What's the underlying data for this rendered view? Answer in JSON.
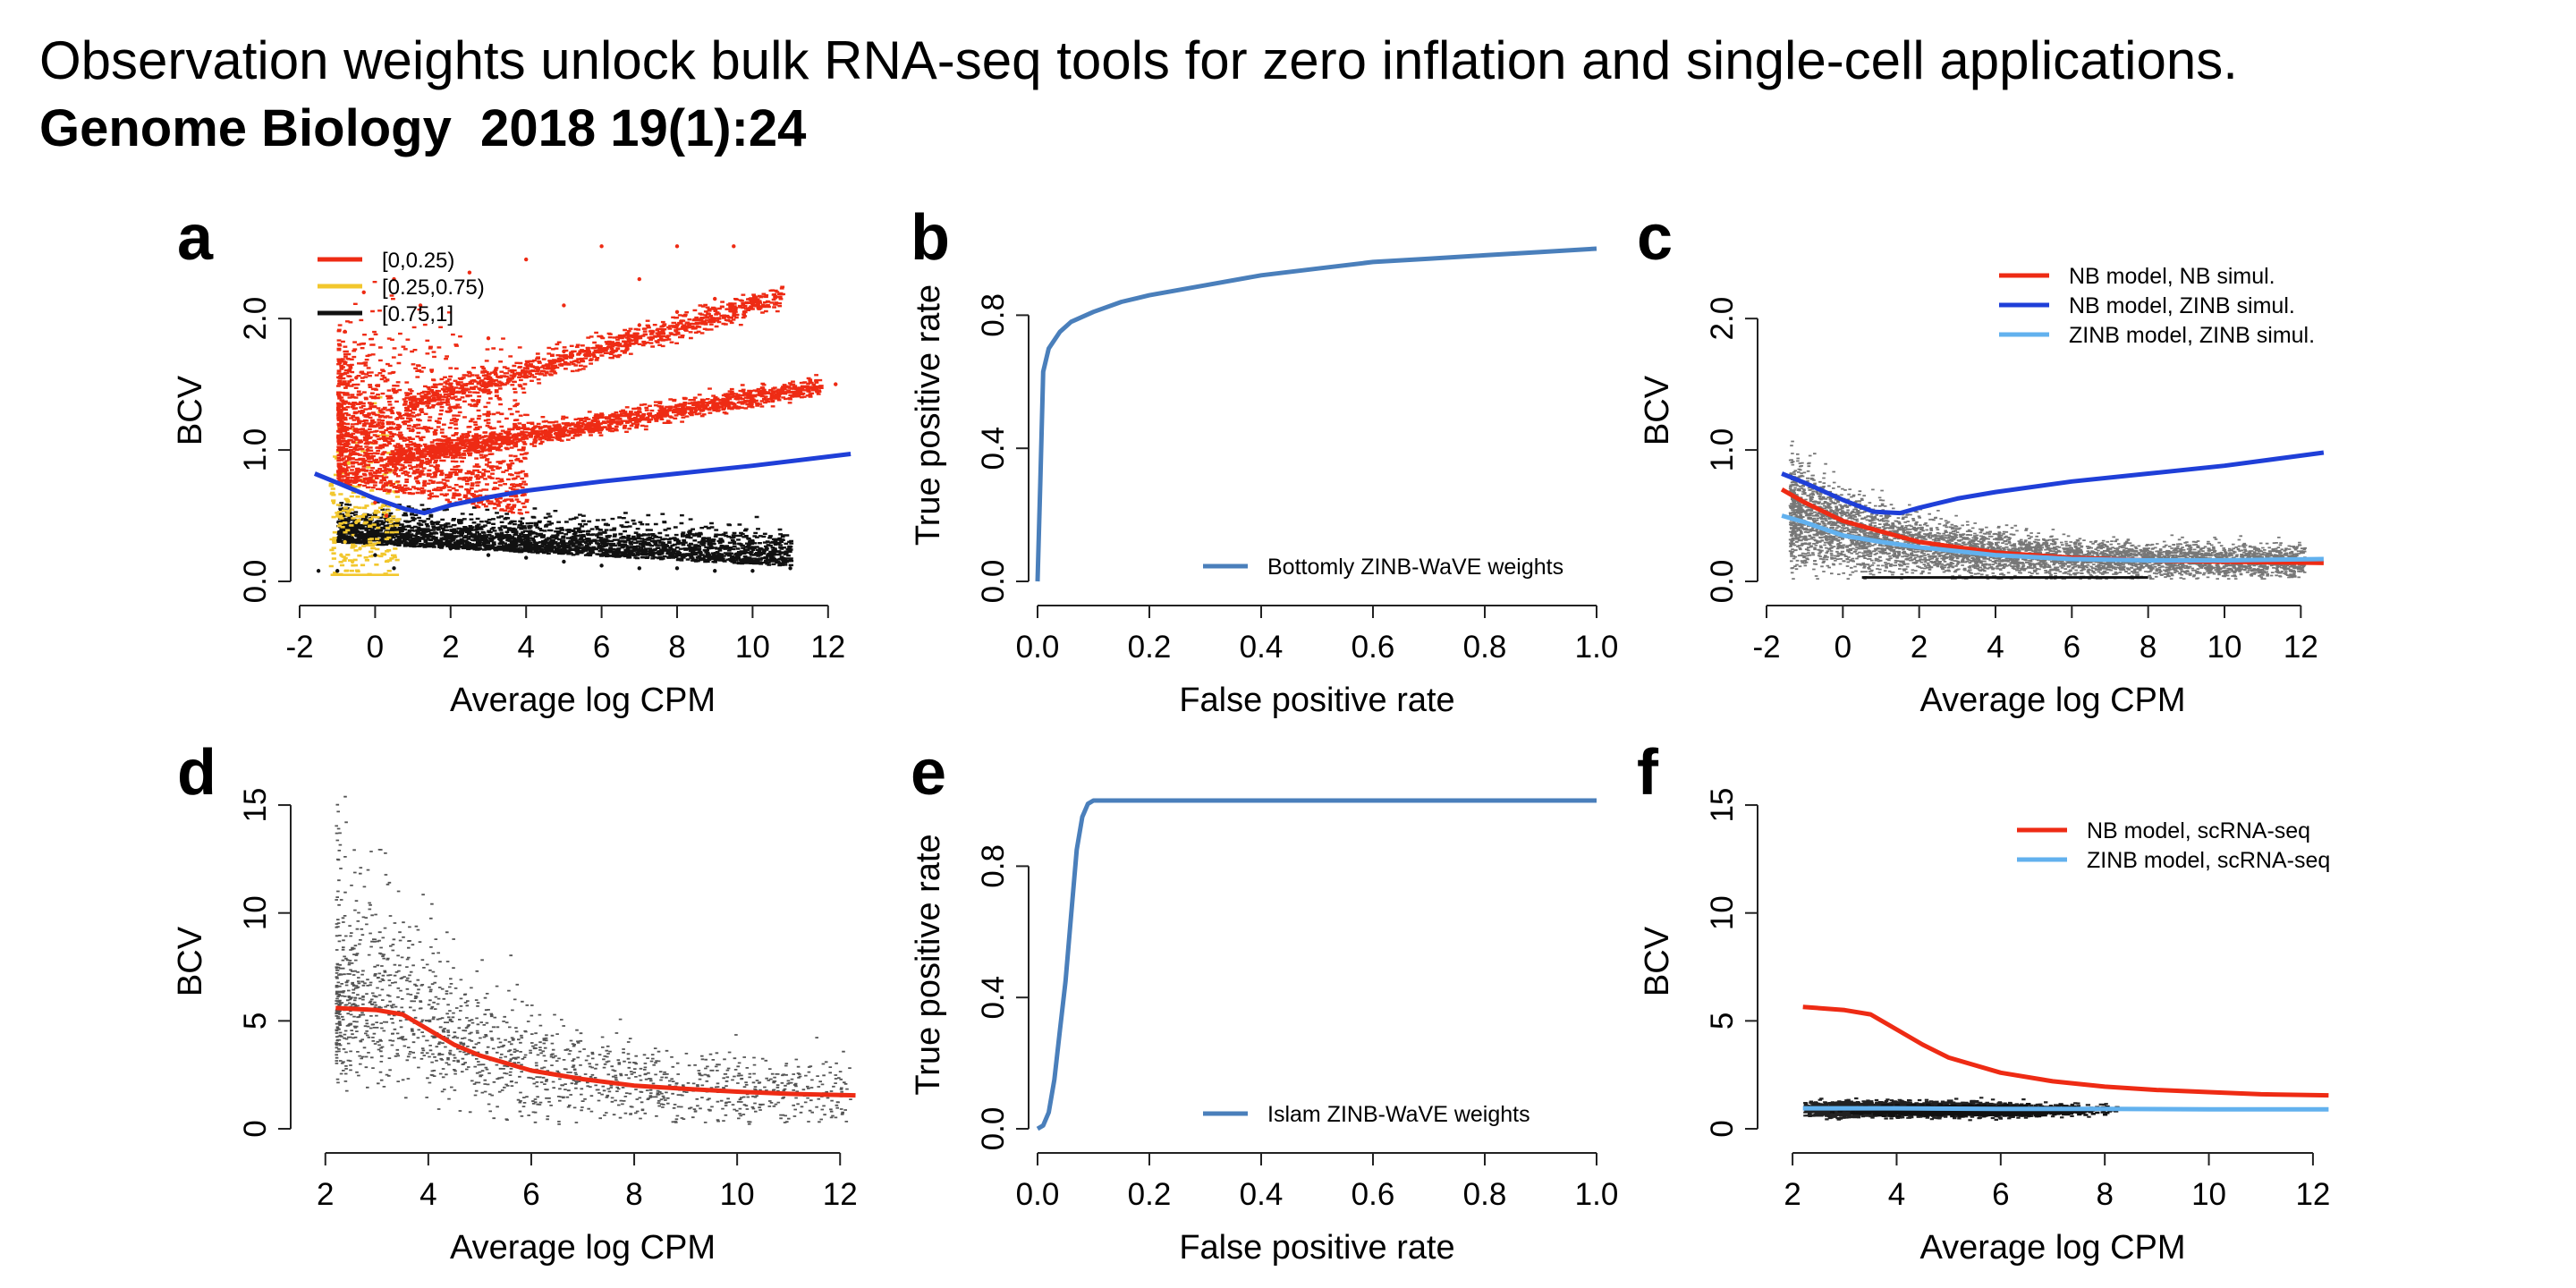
{
  "heading": {
    "title": "Observation weights unlock bulk RNA-seq tools for zero inflation and single-cell applications.",
    "journal": "Genome Biology  2018 19(1):24"
  },
  "colors": {
    "red": "#ee2b14",
    "yellow": "#f2c72d",
    "black": "#111111",
    "blue": "#1f3fd8",
    "steel_blue": "#4a7fbb",
    "light_blue": "#62b1ee",
    "axis": "#222222"
  },
  "chart_data": [
    {
      "panel": "a",
      "type": "scatter",
      "xlabel": "Average log CPM",
      "ylabel": "BCV",
      "xlim": [
        -2,
        13
      ],
      "ylim": [
        0,
        2.6
      ],
      "xticks": [
        -2,
        0,
        2,
        4,
        6,
        8,
        10,
        12
      ],
      "xtick_labels": [
        "-2",
        "0",
        "2",
        "4",
        "6",
        "8",
        "10",
        "12"
      ],
      "yticks": [
        0,
        1,
        2
      ],
      "ytick_labels": [
        "0.0",
        "1.0",
        "2.0"
      ],
      "legend": {
        "placement": "top-left",
        "entries": [
          {
            "label": "[0,0.25)",
            "color": "#ee2b14"
          },
          {
            "label": "[0.25,0.75)",
            "color": "#f2c72d"
          },
          {
            "label": "[0.75,1]",
            "color": "#111111"
          }
        ]
      },
      "series": [
        {
          "name": "[0,0.25)",
          "color": "#ee2b14",
          "kind": "points",
          "points": [
            [
              -0.5,
              1.55
            ],
            [
              0.2,
              1.2
            ],
            [
              1.0,
              1.15
            ],
            [
              2.0,
              1.3
            ],
            [
              3.0,
              1.5
            ],
            [
              4.0,
              1.65
            ],
            [
              5.0,
              1.75
            ],
            [
              6.0,
              1.86
            ],
            [
              7.0,
              1.95
            ],
            [
              8.0,
              2.05
            ],
            [
              9.0,
              2.15
            ],
            [
              -0.8,
              1.9
            ],
            [
              -0.3,
              2.2
            ],
            [
              0.5,
              2.3
            ],
            [
              1.2,
              2.1
            ],
            [
              2.5,
              2.35
            ],
            [
              4.0,
              2.45
            ],
            [
              6.0,
              2.55
            ],
            [
              8.0,
              2.55
            ],
            [
              9.5,
              2.55
            ],
            [
              0.5,
              0.95
            ],
            [
              1.5,
              0.95
            ],
            [
              2.5,
              1.0
            ],
            [
              3.5,
              1.05
            ],
            [
              4.5,
              1.1
            ],
            [
              5.5,
              1.15
            ],
            [
              6.5,
              1.2
            ],
            [
              7.5,
              1.25
            ],
            [
              8.5,
              1.3
            ],
            [
              9.5,
              1.35
            ],
            [
              10.5,
              1.4
            ],
            [
              11.5,
              1.45
            ],
            [
              12.2,
              1.5
            ],
            [
              -0.5,
              0.8
            ],
            [
              0,
              0.6
            ],
            [
              0.3,
              0.5
            ],
            [
              0.8,
              0.7
            ],
            [
              -0.2,
              1.0
            ],
            [
              1.3,
              0.75
            ],
            [
              2.0,
              0.8
            ],
            [
              0.0,
              1.4
            ],
            [
              1.5,
              1.6
            ],
            [
              3.0,
              1.85
            ],
            [
              5.0,
              2.1
            ],
            [
              7.0,
              2.3
            ]
          ]
        },
        {
          "name": "[0.25,0.75)",
          "color": "#f2c72d",
          "kind": "points",
          "points": [
            [
              -1.0,
              0.5
            ],
            [
              -0.8,
              0.3
            ],
            [
              -0.6,
              0.7
            ],
            [
              -0.9,
              0.2
            ],
            [
              -0.5,
              0.45
            ],
            [
              -0.7,
              0.9
            ],
            [
              -0.4,
              0.25
            ],
            [
              -1.1,
              0.6
            ],
            [
              -0.6,
              0.15
            ]
          ]
        },
        {
          "name": "[0.75,1]",
          "color": "#111111",
          "kind": "points",
          "points": [
            [
              0,
              0.2
            ],
            [
              1,
              0.3
            ],
            [
              2,
              0.25
            ],
            [
              3,
              0.2
            ],
            [
              4,
              0.18
            ],
            [
              5,
              0.15
            ],
            [
              6,
              0.12
            ],
            [
              7,
              0.1
            ],
            [
              8,
              0.1
            ],
            [
              9,
              0.08
            ],
            [
              10,
              0.08
            ],
            [
              11,
              0.1
            ],
            [
              1.5,
              0.45
            ],
            [
              2.5,
              0.4
            ],
            [
              3.5,
              0.35
            ],
            [
              4.5,
              0.3
            ],
            [
              0.5,
              0.1
            ],
            [
              -1,
              0.08
            ],
            [
              -1.5,
              0.08
            ],
            [
              6,
              0.3
            ],
            [
              8,
              0.2
            ],
            [
              -0.5,
              0.35
            ]
          ]
        },
        {
          "name": "trend",
          "color": "#1f3fd8",
          "kind": "line",
          "points": [
            [
              -1.6,
              0.82
            ],
            [
              -1,
              0.75
            ],
            [
              0,
              0.63
            ],
            [
              0.8,
              0.55
            ],
            [
              1.3,
              0.52
            ],
            [
              2,
              0.58
            ],
            [
              3,
              0.64
            ],
            [
              4,
              0.69
            ],
            [
              6,
              0.76
            ],
            [
              8,
              0.82
            ],
            [
              10,
              0.88
            ],
            [
              12.6,
              0.97
            ]
          ]
        }
      ]
    },
    {
      "panel": "b",
      "type": "line",
      "xlabel": "False positive rate",
      "ylabel": "True positive rate",
      "xlim": [
        0,
        1
      ],
      "ylim": [
        0,
        1
      ],
      "xticks": [
        0,
        0.2,
        0.4,
        0.6,
        0.8,
        1
      ],
      "xtick_labels": [
        "0.0",
        "0.2",
        "0.4",
        "0.6",
        "0.8",
        "1.0"
      ],
      "yticks": [
        0,
        0.4,
        0.8
      ],
      "ytick_labels": [
        "0.0",
        "0.4",
        "0.8"
      ],
      "legend": {
        "placement": "bottom-right",
        "entries": [
          {
            "label": "Bottomly ZINB-WaVE weights",
            "color": "#4a7fbb"
          }
        ]
      },
      "series": [
        {
          "name": "Bottomly ZINB-WaVE weights",
          "color": "#4a7fbb",
          "kind": "line",
          "points": [
            [
              0,
              0
            ],
            [
              0.005,
              0.3
            ],
            [
              0.01,
              0.63
            ],
            [
              0.02,
              0.7
            ],
            [
              0.04,
              0.75
            ],
            [
              0.06,
              0.78
            ],
            [
              0.1,
              0.81
            ],
            [
              0.15,
              0.84
            ],
            [
              0.2,
              0.86
            ],
            [
              0.3,
              0.89
            ],
            [
              0.4,
              0.92
            ],
            [
              0.5,
              0.94
            ],
            [
              0.6,
              0.96
            ],
            [
              0.7,
              0.97
            ],
            [
              0.8,
              0.98
            ],
            [
              0.9,
              0.99
            ],
            [
              1,
              1
            ]
          ]
        }
      ]
    },
    {
      "panel": "c",
      "type": "scatter",
      "xlabel": "Average log CPM",
      "ylabel": "BCV",
      "xlim": [
        -2,
        13
      ],
      "ylim": [
        0,
        2.6
      ],
      "xticks": [
        -2,
        0,
        2,
        4,
        6,
        8,
        10,
        12
      ],
      "xtick_labels": [
        "-2",
        "0",
        "2",
        "4",
        "6",
        "8",
        "10",
        "12"
      ],
      "yticks": [
        0,
        1,
        2
      ],
      "ytick_labels": [
        "0.0",
        "1.0",
        "2.0"
      ],
      "legend": {
        "placement": "top-right",
        "entries": [
          {
            "label": "NB model, NB simul.",
            "color": "#ee2b14"
          },
          {
            "label": "NB model, ZINB simul.",
            "color": "#1f3fd8"
          },
          {
            "label": "ZINB model, ZINB simul.",
            "color": "#62b1ee"
          }
        ]
      },
      "series": [
        {
          "name": "NB model, NB simul.",
          "color": "#ee2b14",
          "kind": "line",
          "points": [
            [
              -1.6,
              0.7
            ],
            [
              -1,
              0.6
            ],
            [
              0,
              0.46
            ],
            [
              1,
              0.38
            ],
            [
              2,
              0.3
            ],
            [
              4,
              0.22
            ],
            [
              6,
              0.18
            ],
            [
              8,
              0.16
            ],
            [
              10,
              0.15
            ],
            [
              12.6,
              0.14
            ]
          ]
        },
        {
          "name": "NB model, ZINB simul.",
          "color": "#1f3fd8",
          "kind": "line",
          "points": [
            [
              -1.6,
              0.82
            ],
            [
              -1,
              0.75
            ],
            [
              0,
              0.62
            ],
            [
              0.8,
              0.53
            ],
            [
              1.5,
              0.52
            ],
            [
              2,
              0.56
            ],
            [
              3,
              0.63
            ],
            [
              4,
              0.68
            ],
            [
              6,
              0.76
            ],
            [
              8,
              0.82
            ],
            [
              10,
              0.88
            ],
            [
              12.6,
              0.98
            ]
          ]
        },
        {
          "name": "ZINB model, ZINB simul.",
          "color": "#62b1ee",
          "kind": "line",
          "points": [
            [
              -1.6,
              0.5
            ],
            [
              -1,
              0.45
            ],
            [
              0,
              0.35
            ],
            [
              1,
              0.3
            ],
            [
              2,
              0.26
            ],
            [
              4,
              0.2
            ],
            [
              6,
              0.17
            ],
            [
              8,
              0.16
            ],
            [
              10,
              0.16
            ],
            [
              12.6,
              0.17
            ]
          ]
        }
      ]
    },
    {
      "panel": "d",
      "type": "scatter",
      "xlabel": "Average log CPM",
      "ylabel": "BCV",
      "xlim": [
        1.5,
        12.5
      ],
      "ylim": [
        0,
        15.5
      ],
      "xticks": [
        2,
        4,
        6,
        8,
        10,
        12
      ],
      "xtick_labels": [
        "2",
        "4",
        "6",
        "8",
        "10",
        "12"
      ],
      "yticks": [
        0,
        5,
        10,
        15
      ],
      "ytick_labels": [
        "0",
        "5",
        "10",
        "15"
      ],
      "legend": null,
      "series": [
        {
          "name": "trend",
          "color": "#ee2b14",
          "kind": "line",
          "points": [
            [
              2.2,
              5.6
            ],
            [
              3,
              5.5
            ],
            [
              3.5,
              5.3
            ],
            [
              4,
              4.6
            ],
            [
              4.5,
              3.9
            ],
            [
              5,
              3.4
            ],
            [
              6,
              2.7
            ],
            [
              7,
              2.3
            ],
            [
              8,
              2.0
            ],
            [
              9,
              1.85
            ],
            [
              10,
              1.72
            ],
            [
              11,
              1.62
            ],
            [
              12.3,
              1.55
            ]
          ]
        }
      ]
    },
    {
      "panel": "e",
      "type": "line",
      "xlabel": "False positive rate",
      "ylabel": "True positive rate",
      "xlim": [
        0,
        1
      ],
      "ylim": [
        0,
        1
      ],
      "xticks": [
        0,
        0.2,
        0.4,
        0.6,
        0.8,
        1
      ],
      "xtick_labels": [
        "0.0",
        "0.2",
        "0.4",
        "0.6",
        "0.8",
        "1.0"
      ],
      "yticks": [
        0,
        0.4,
        0.8
      ],
      "ytick_labels": [
        "0.0",
        "0.4",
        "0.8"
      ],
      "legend": {
        "placement": "bottom-right",
        "entries": [
          {
            "label": "Islam ZINB-WaVE weights",
            "color": "#4a7fbb"
          }
        ]
      },
      "series": [
        {
          "name": "Islam ZINB-WaVE weights",
          "color": "#4a7fbb",
          "kind": "line",
          "points": [
            [
              0,
              0
            ],
            [
              0.01,
              0.01
            ],
            [
              0.02,
              0.05
            ],
            [
              0.03,
              0.15
            ],
            [
              0.04,
              0.3
            ],
            [
              0.05,
              0.45
            ],
            [
              0.06,
              0.65
            ],
            [
              0.07,
              0.85
            ],
            [
              0.08,
              0.95
            ],
            [
              0.09,
              0.99
            ],
            [
              0.1,
              1
            ],
            [
              1,
              1
            ]
          ]
        }
      ]
    },
    {
      "panel": "f",
      "type": "scatter",
      "xlabel": "Average log CPM",
      "ylabel": "BCV",
      "xlim": [
        1.5,
        12.5
      ],
      "ylim": [
        0,
        15.5
      ],
      "xticks": [
        2,
        4,
        6,
        8,
        10,
        12
      ],
      "xtick_labels": [
        "2",
        "4",
        "6",
        "8",
        "10",
        "12"
      ],
      "yticks": [
        0,
        5,
        10,
        15
      ],
      "ytick_labels": [
        "0",
        "5",
        "10",
        "15"
      ],
      "legend": {
        "placement": "top-right",
        "entries": [
          {
            "label": "NB model, scRNA-seq",
            "color": "#ee2b14"
          },
          {
            "label": "ZINB model, scRNA-seq",
            "color": "#62b1ee"
          }
        ]
      },
      "series": [
        {
          "name": "NB model, scRNA-seq",
          "color": "#ee2b14",
          "kind": "line",
          "points": [
            [
              2.2,
              5.65
            ],
            [
              3,
              5.5
            ],
            [
              3.5,
              5.3
            ],
            [
              4,
              4.6
            ],
            [
              4.5,
              3.9
            ],
            [
              5,
              3.3
            ],
            [
              6,
              2.6
            ],
            [
              7,
              2.2
            ],
            [
              8,
              1.95
            ],
            [
              9,
              1.8
            ],
            [
              10,
              1.7
            ],
            [
              11,
              1.6
            ],
            [
              12.3,
              1.55
            ]
          ]
        },
        {
          "name": "ZINB model, scRNA-seq",
          "color": "#62b1ee",
          "kind": "line",
          "points": [
            [
              2.2,
              0.95
            ],
            [
              4,
              0.95
            ],
            [
              6,
              0.92
            ],
            [
              8,
              0.92
            ],
            [
              10,
              0.9
            ],
            [
              12.3,
              0.9
            ]
          ]
        }
      ]
    }
  ]
}
